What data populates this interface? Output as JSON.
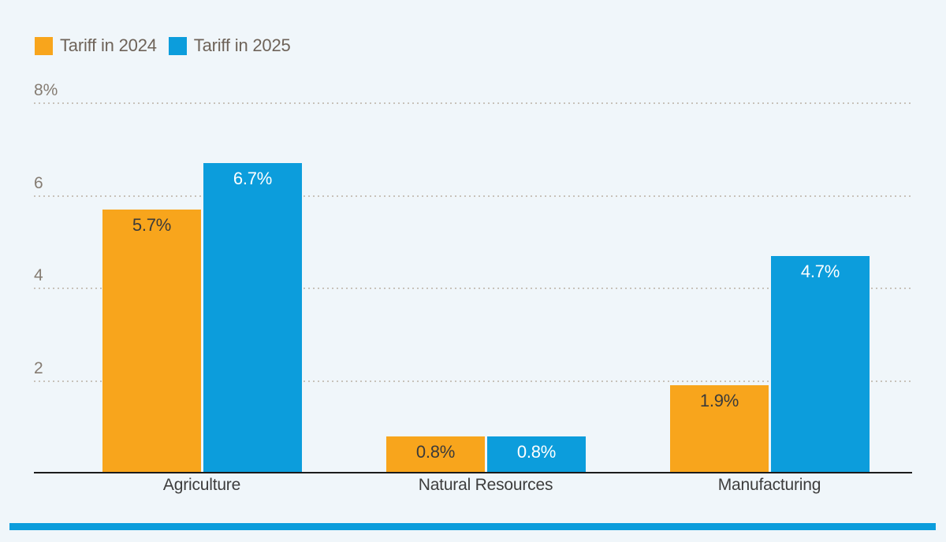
{
  "page": {
    "background_color": "#f0f6fa"
  },
  "legend": {
    "items": [
      {
        "label": "Tariff in 2024",
        "color": "#f8a51c"
      },
      {
        "label": "Tariff in 2025",
        "color": "#0c9ddc"
      }
    ]
  },
  "chart_data": {
    "type": "bar",
    "categories": [
      "Agriculture",
      "Natural Resources",
      "Manufacturing"
    ],
    "series": [
      {
        "name": "Tariff in 2024",
        "values": [
          5.7,
          0.8,
          1.9
        ],
        "data_labels": [
          "5.7%",
          "0.8%",
          "1.9%"
        ],
        "color": "#f8a51c",
        "label_color": "#3a3a3a"
      },
      {
        "name": "Tariff in 2025",
        "values": [
          6.7,
          0.8,
          4.7
        ],
        "data_labels": [
          "6.7%",
          "0.8%",
          "4.7%"
        ],
        "color": "#0c9ddc",
        "label_color": "#ffffff"
      }
    ],
    "title": "",
    "xlabel": "",
    "ylabel": "",
    "ylim": [
      0,
      8
    ],
    "yticks": [
      {
        "value": 2,
        "label": "2"
      },
      {
        "value": 4,
        "label": "4"
      },
      {
        "value": 6,
        "label": "6"
      },
      {
        "value": 8,
        "label": "8%"
      }
    ],
    "grid": "horizontal-dotted",
    "gridline_color": "#c8c2ba",
    "baseline_color": "#1c1c1c",
    "legend_position": "top-left"
  },
  "footer": {
    "rule_color": "#0c9ddc"
  }
}
